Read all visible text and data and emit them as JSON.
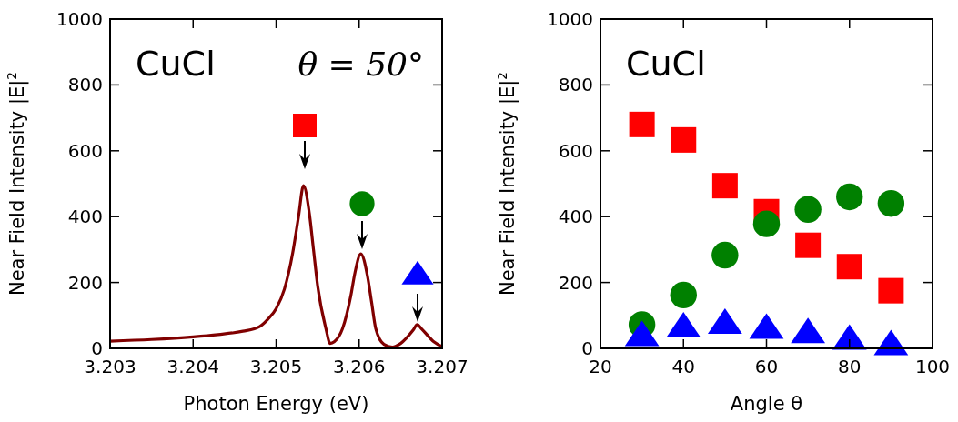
{
  "chart_data": [
    {
      "type": "line",
      "xlabel": "Photon Energy (eV)",
      "ylabel": "Near Field Intensity |E|$^{2}$",
      "annotations": [
        "CuCl",
        "θ = 50°"
      ],
      "series": [
        {
          "color": "#800000",
          "x": [
            3.203,
            3.2035,
            3.204,
            3.2043,
            3.2046,
            3.2048,
            3.2049,
            3.205,
            3.2051,
            3.2052,
            3.20527,
            3.20533,
            3.2054,
            3.20545,
            3.2055,
            3.2056,
            3.20565,
            3.2057,
            3.2058,
            3.2059,
            3.20595,
            3.20602,
            3.2061,
            3.20615,
            3.2062,
            3.2063,
            3.2064,
            3.2065,
            3.20665,
            3.2067,
            3.20675,
            3.2069,
            3.207
          ],
          "values": [
            22,
            27,
            35,
            42,
            52,
            66,
            88,
            120,
            180,
            290,
            400,
            494,
            410,
            300,
            190,
            60,
            15,
            20,
            60,
            160,
            230,
            287,
            220,
            140,
            60,
            12,
            4,
            15,
            55,
            72,
            60,
            20,
            5
          ]
        }
      ],
      "xlim": [
        3.203,
        3.207
      ],
      "xticks": [
        3.203,
        3.204,
        3.205,
        3.206,
        3.207
      ],
      "ylim": [
        0,
        1000
      ],
      "yticks": [
        0,
        200,
        400,
        600,
        800,
        1000
      ],
      "grid": false,
      "line_style": "solid",
      "marker": "none"
    },
    {
      "type": "scatter",
      "xlabel": "Angle θ",
      "ylabel": "Near Field Intensity |E|$^{2}$",
      "annotations": [
        "CuCl"
      ],
      "x": [
        30,
        40,
        50,
        60,
        70,
        80,
        90
      ],
      "series": [
        {
          "color": "#ff0000",
          "marker": "square",
          "values": [
            680,
            633,
            494,
            415,
            313,
            248,
            175
          ]
        },
        {
          "color": "#008000",
          "marker": "circle",
          "values": [
            72,
            162,
            283,
            378,
            422,
            460,
            440
          ]
        },
        {
          "color": "#0000ff",
          "marker": "triangle",
          "values": [
            36,
            62,
            73,
            58,
            45,
            25,
            8
          ]
        }
      ],
      "xlim": [
        20,
        100
      ],
      "xticks": [
        20,
        40,
        60,
        80,
        100
      ],
      "ylim": [
        0,
        1000
      ],
      "yticks": [
        0,
        200,
        400,
        600,
        800,
        1000
      ],
      "grid": false
    }
  ]
}
